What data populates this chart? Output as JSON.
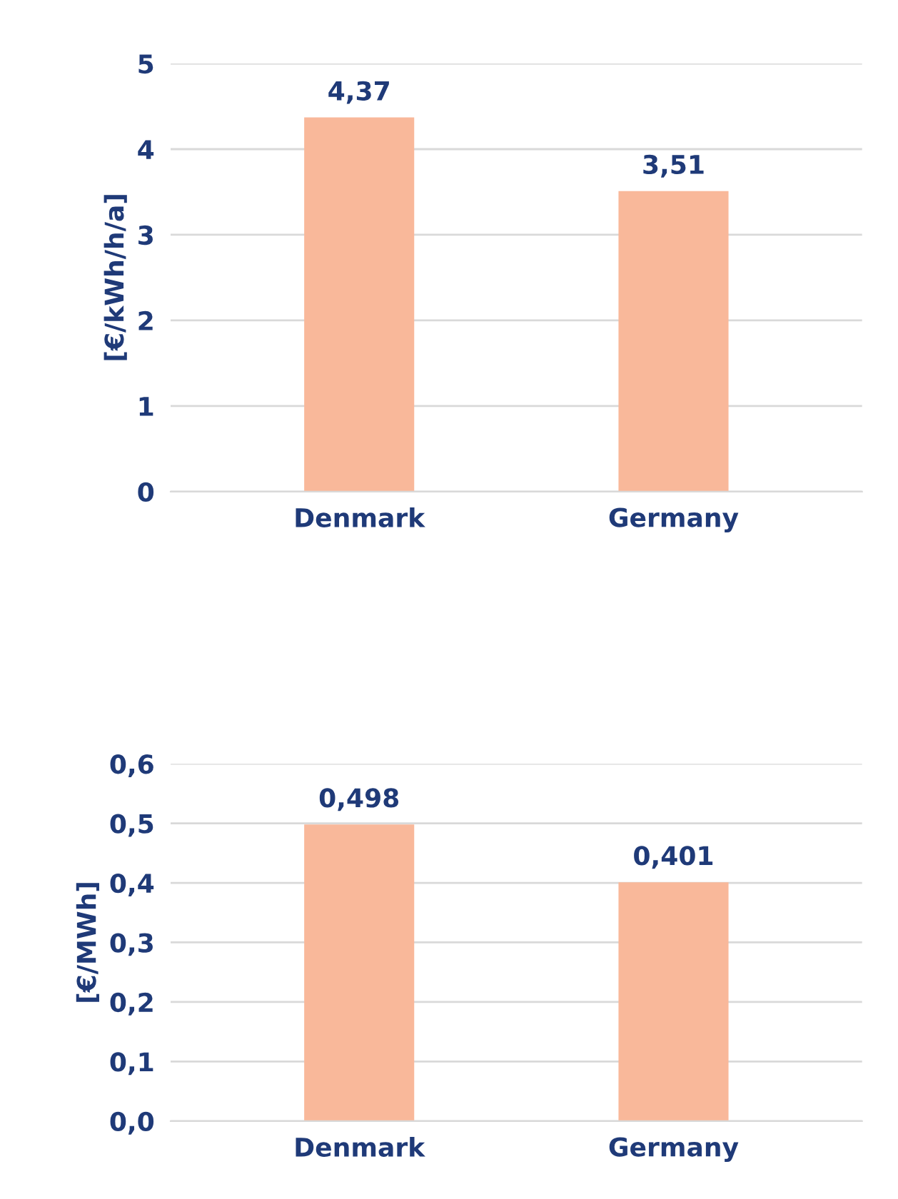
{
  "chart_data": [
    {
      "type": "bar",
      "ylabel": "[€/kWh/h/a]",
      "categories": [
        "Denmark",
        "Germany"
      ],
      "values": [
        4.37,
        3.51
      ],
      "value_labels": [
        "4,37",
        "3,51"
      ],
      "color": "#f9b89a",
      "ylim": [
        0,
        5
      ],
      "yticks": [
        0,
        1,
        2,
        3,
        4,
        5
      ],
      "grid": "y"
    },
    {
      "type": "bar",
      "ylabel": "[€/MWh]",
      "categories": [
        "Denmark",
        "Germany"
      ],
      "values": [
        0.498,
        0.401
      ],
      "value_labels": [
        "0,498",
        "0,401"
      ],
      "color": "#f9b89a",
      "ylim": [
        0,
        0.6
      ],
      "yticks": [
        {
          "value": 0,
          "label": "0,0"
        },
        {
          "value": 0.1,
          "label": "0,1"
        },
        {
          "value": 0.2,
          "label": "0,2"
        },
        {
          "value": 0.3,
          "label": "0,3"
        },
        {
          "value": 0.4,
          "label": "0,4"
        },
        {
          "value": 0.5,
          "label": "0,5"
        },
        {
          "value": 0.6,
          "label": "0,6"
        }
      ],
      "grid": "y"
    }
  ]
}
